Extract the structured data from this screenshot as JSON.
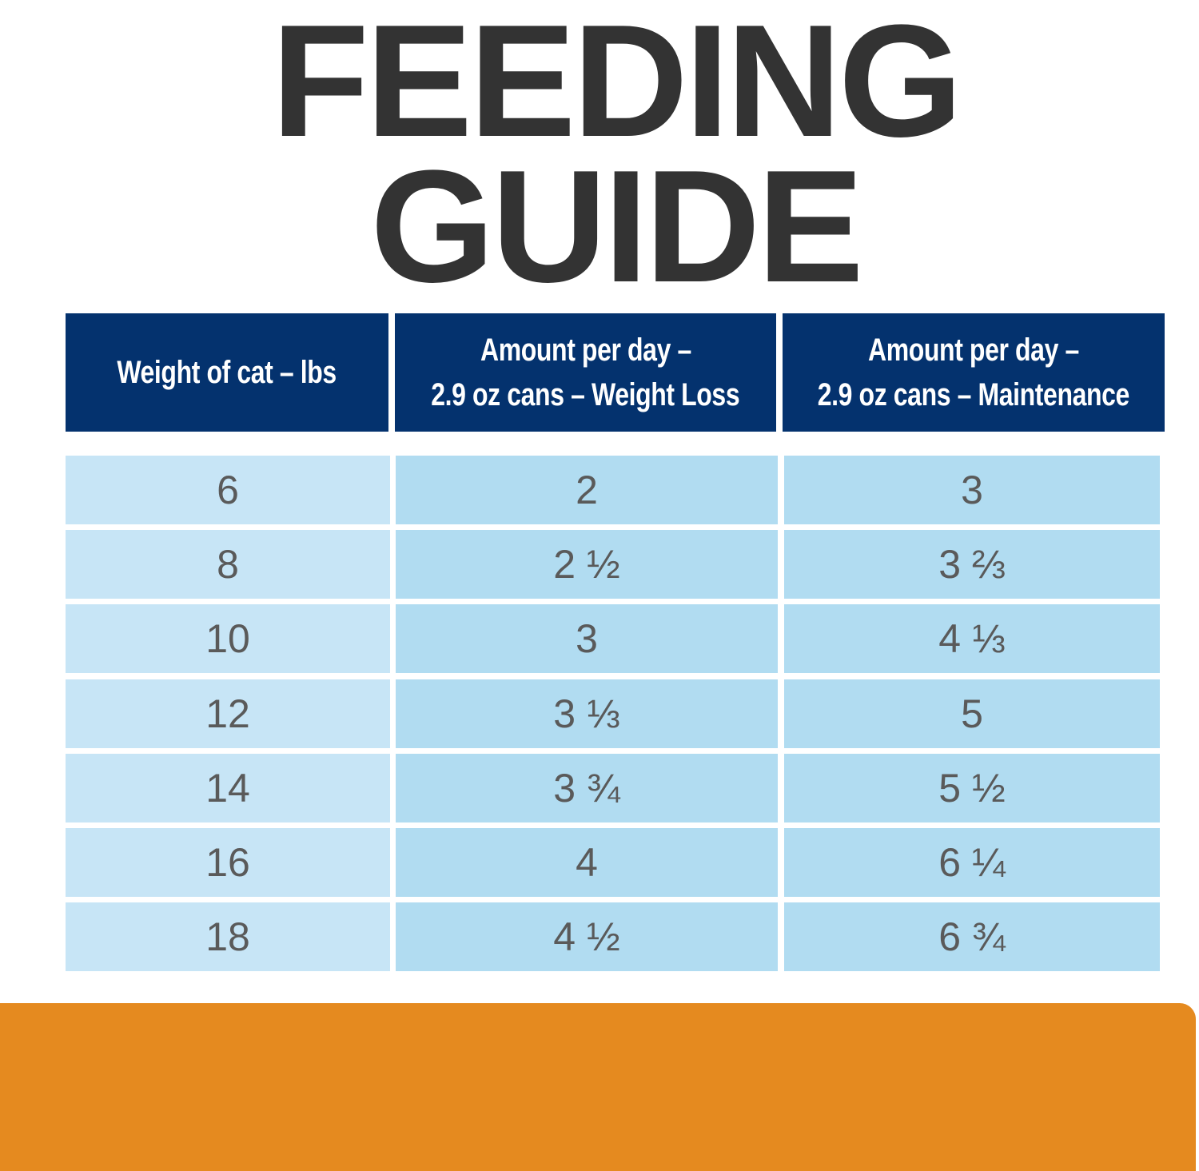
{
  "title": {
    "lines": [
      "FEEDING",
      "GUIDE"
    ]
  },
  "table": {
    "headers": [
      [
        "Weight of cat – lbs"
      ],
      [
        "Amount per day –",
        "2.9 oz cans – Weight Loss"
      ],
      [
        "Amount per day –",
        "2.9 oz cans – Maintenance"
      ]
    ],
    "rows": [
      [
        "6",
        "2",
        "3"
      ],
      [
        "8",
        "2 ½",
        "3 ⅔"
      ],
      [
        "10",
        "3",
        "4 ⅓"
      ],
      [
        "12",
        "3 ⅓",
        "5"
      ],
      [
        "14",
        "3 ¾",
        "5 ½"
      ],
      [
        "16",
        "4",
        "6 ¼"
      ],
      [
        "18",
        "4 ½",
        "6 ¾"
      ]
    ]
  }
}
